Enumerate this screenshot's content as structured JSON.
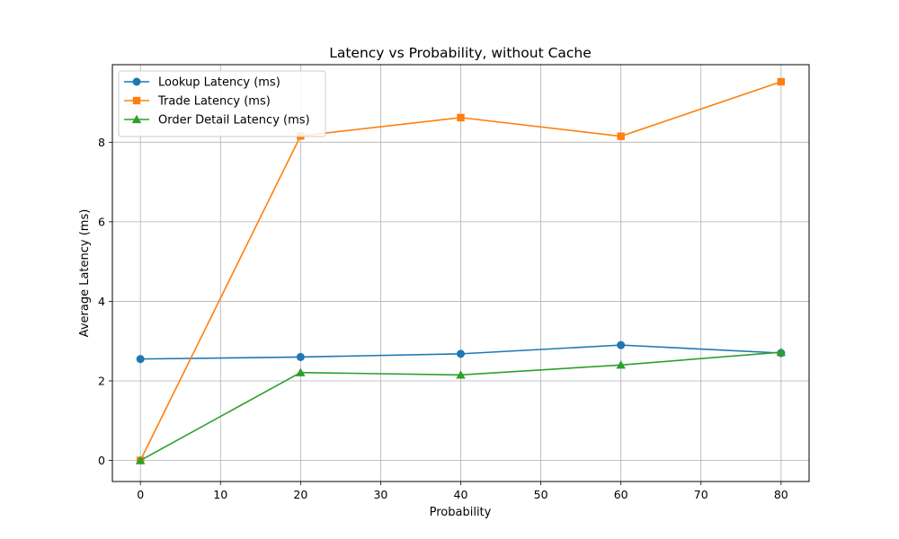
{
  "chart_data": {
    "type": "line",
    "title": "Latency vs Probability, without Cache",
    "xlabel": "Probability",
    "ylabel": "Average Latency (ms)",
    "x": [
      0,
      20,
      40,
      60,
      80
    ],
    "xlim": [
      -3.5,
      83.5
    ],
    "ylim": [
      -0.53,
      9.95
    ],
    "xticks": [
      "0",
      "10",
      "20",
      "30",
      "40",
      "50",
      "60",
      "70",
      "80"
    ],
    "yticks": [
      "0",
      "2",
      "4",
      "6",
      "8"
    ],
    "grid": true,
    "legend_position": "top-left",
    "series": [
      {
        "name": "Lookup Latency (ms)",
        "color": "#1f77b4",
        "marker": "circle",
        "values": [
          2.55,
          2.6,
          2.68,
          2.9,
          2.7
        ]
      },
      {
        "name": "Trade Latency (ms)",
        "color": "#ff7f0e",
        "marker": "square",
        "values": [
          0.0,
          8.16,
          8.62,
          8.15,
          9.52
        ]
      },
      {
        "name": "Order Detail Latency (ms)",
        "color": "#2ca02c",
        "marker": "triangle",
        "values": [
          0.0,
          2.21,
          2.15,
          2.4,
          2.72
        ]
      }
    ]
  }
}
